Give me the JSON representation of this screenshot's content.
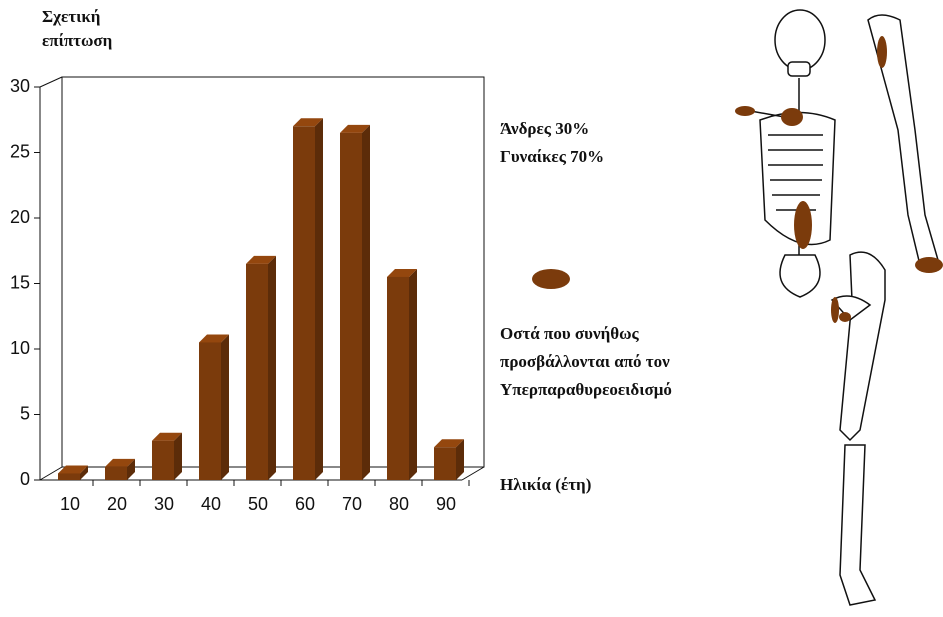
{
  "chart_data": {
    "type": "bar",
    "ylabel_lines": [
      "Σχετική",
      "επίπτωση"
    ],
    "xlabel": "Ηλικία (έτη)",
    "annotations": [
      "Άνδρες 30%",
      "Γυναίκες 70%"
    ],
    "legend_lines": [
      "Οστά που συνήθως",
      "προσβάλλονται από τον",
      "Υπερπαραθυρεοειδισμό"
    ],
    "categories": [
      "10",
      "20",
      "30",
      "40",
      "50",
      "60",
      "70",
      "80",
      "90"
    ],
    "values": [
      0.5,
      1,
      3,
      10.5,
      16.5,
      27,
      26.5,
      15.5,
      2.5
    ],
    "color": "#7b3b0c",
    "ylim": [
      0,
      30
    ],
    "yticks": [
      0,
      5,
      10,
      15,
      20,
      25,
      30
    ]
  }
}
